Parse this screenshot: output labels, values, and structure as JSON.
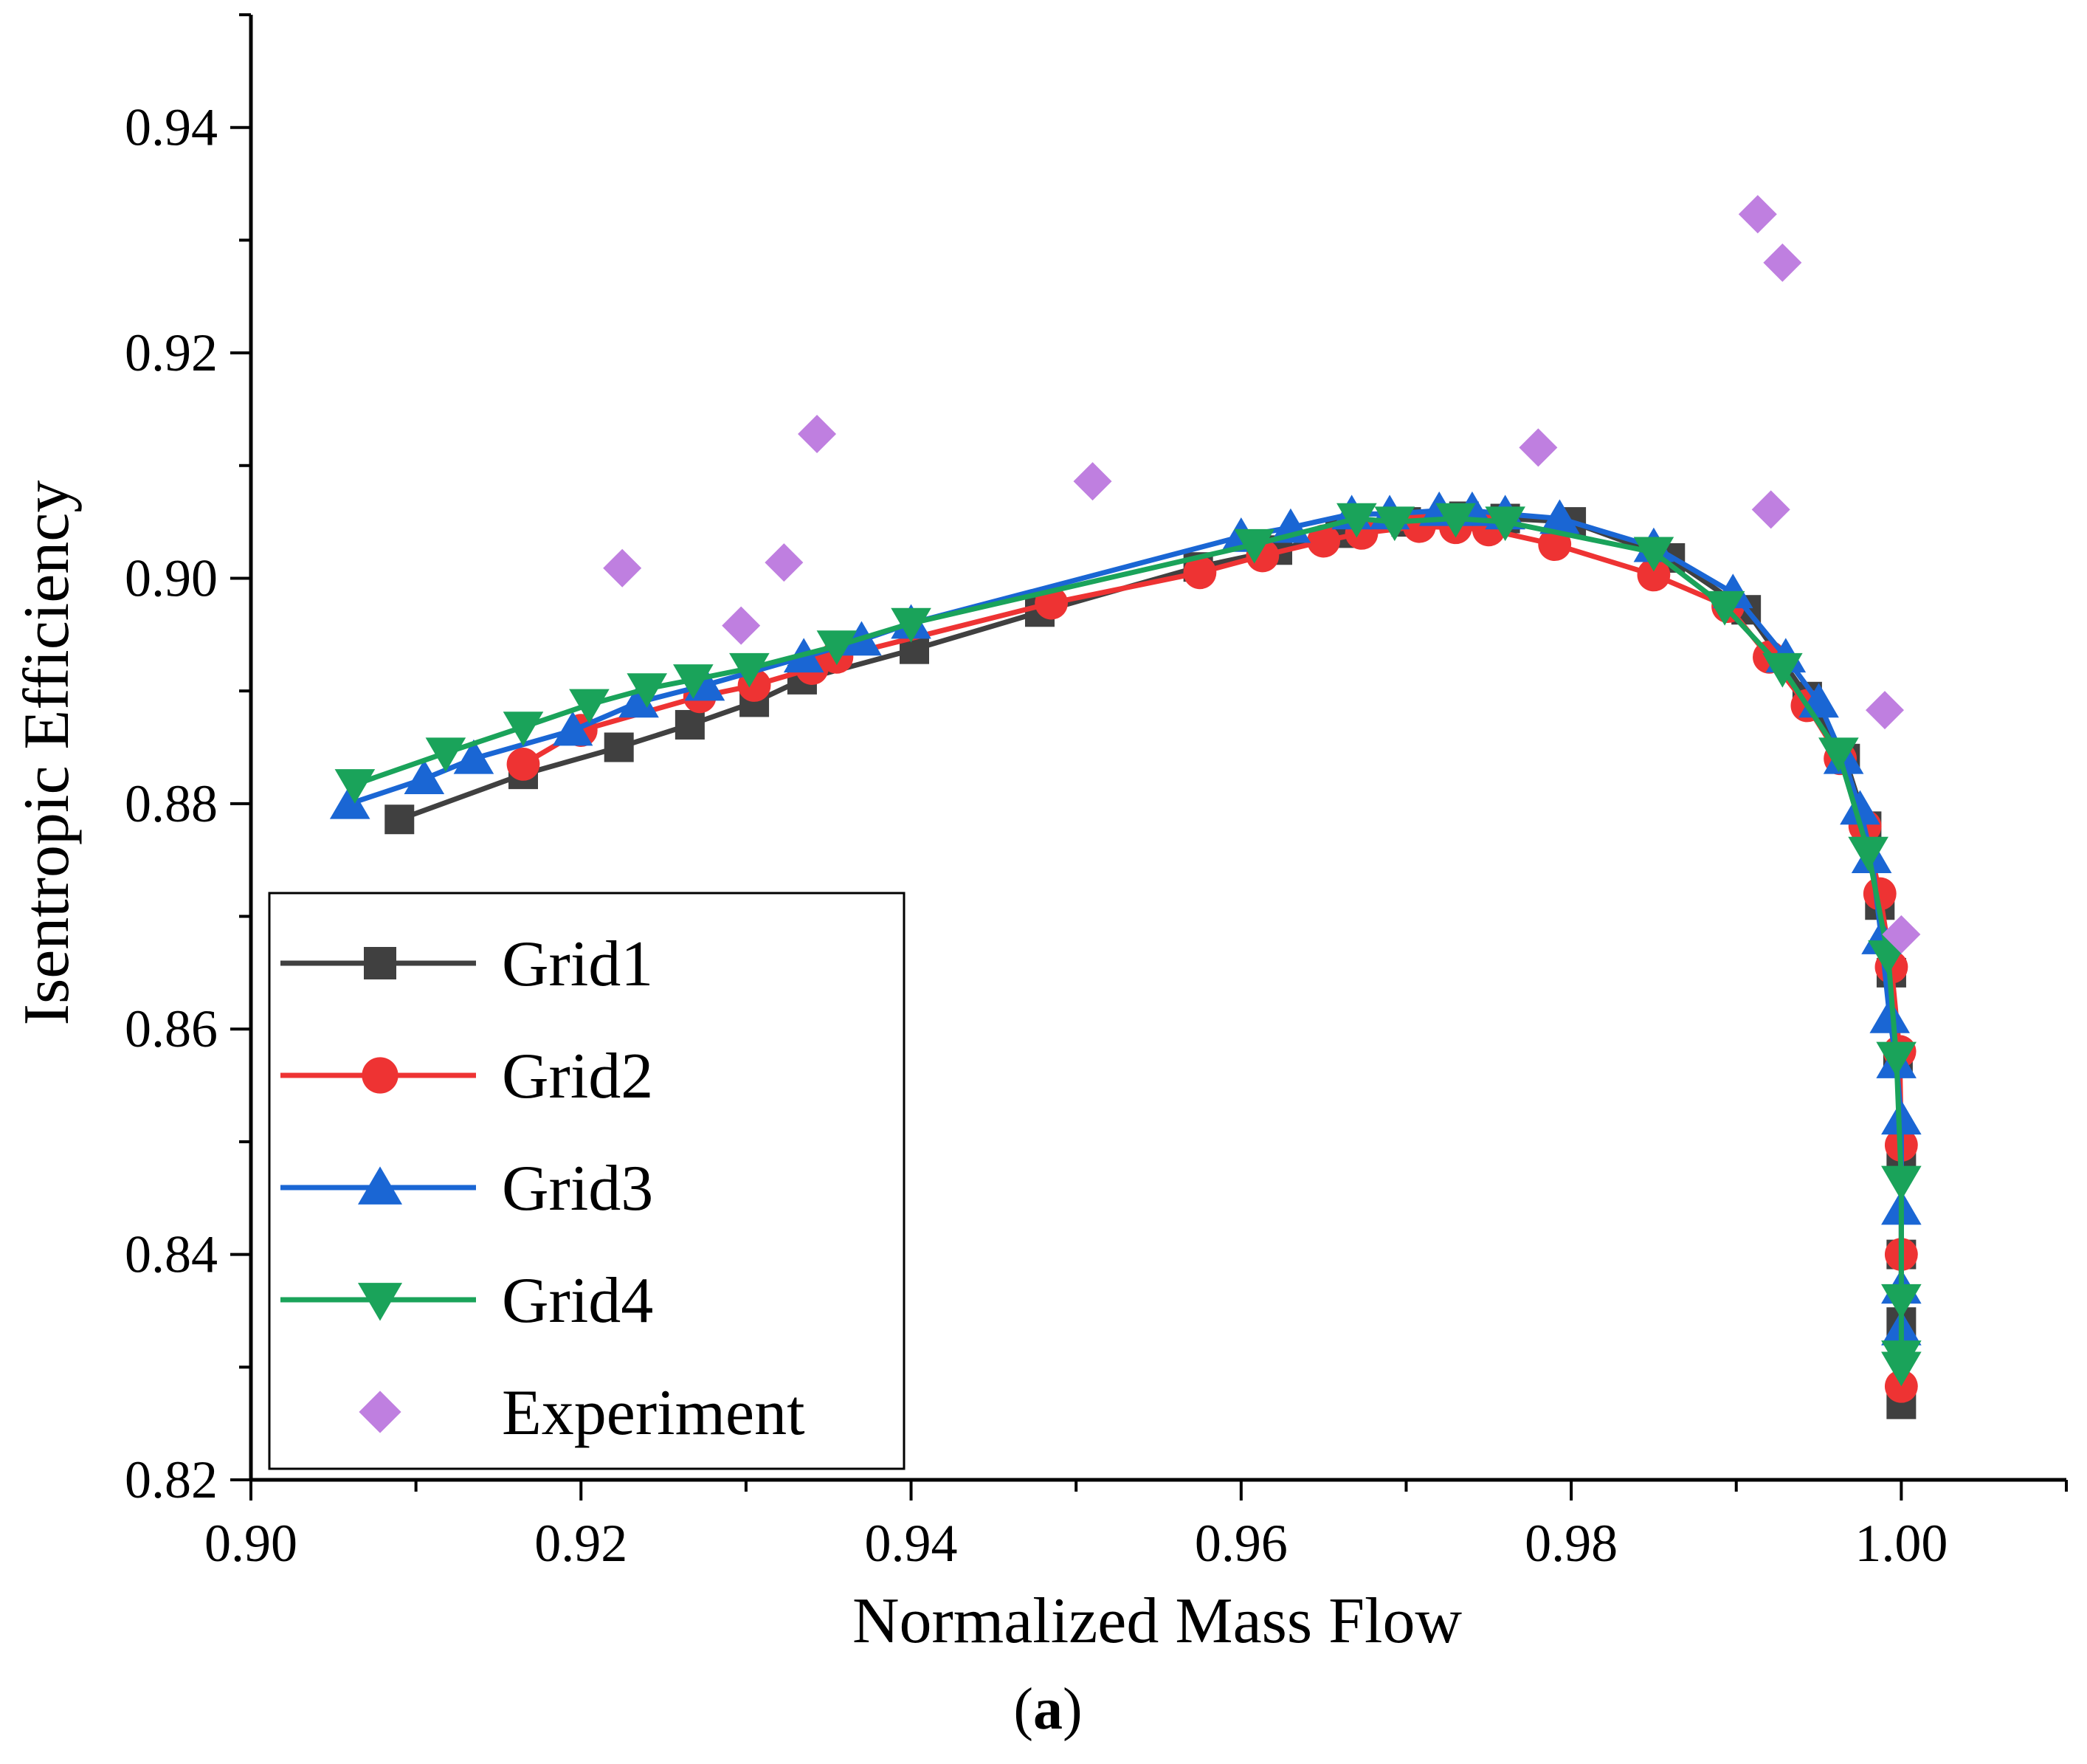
{
  "chart_data": {
    "type": "line",
    "title": "",
    "xlabel": "Normalized Mass Flow",
    "ylabel": "Isentropic Efficiency",
    "xlim": [
      0.9,
      1.01
    ],
    "ylim": [
      0.82,
      0.95
    ],
    "x_ticks": [
      "0.90",
      "0.92",
      "0.94",
      "0.96",
      "0.98",
      "1.00"
    ],
    "y_ticks": [
      "0.82",
      "0.84",
      "0.86",
      "0.88",
      "0.90",
      "0.92",
      "0.94"
    ],
    "legend_position": "bottom-left",
    "caption": {
      "open": "(",
      "label": "a",
      "close": ")"
    },
    "series": [
      {
        "name": "Grid1",
        "color": "#404040",
        "marker": "square",
        "x": [
          0.909,
          0.9165,
          0.9223,
          0.9266,
          0.9305,
          0.9334,
          0.9402,
          0.9478,
          0.9574,
          0.9622,
          0.966,
          0.97,
          0.9735,
          0.976,
          0.98,
          0.986,
          0.9906,
          0.9943,
          0.9966,
          0.9979,
          0.9987,
          0.9994,
          0.9998,
          1.0,
          1.0,
          1.0,
          1.0
        ],
        "y": [
          0.8786,
          0.8826,
          0.885,
          0.887,
          0.889,
          0.891,
          0.8937,
          0.897,
          0.901,
          0.9025,
          0.904,
          0.905,
          0.9055,
          0.9053,
          0.905,
          0.9018,
          0.8972,
          0.8895,
          0.884,
          0.878,
          0.871,
          0.865,
          0.857,
          0.849,
          0.84,
          0.834,
          0.8267
        ]
      },
      {
        "name": "Grid2",
        "color": "#ee3333",
        "marker": "circle",
        "x": [
          0.9165,
          0.92,
          0.9272,
          0.9305,
          0.934,
          0.9355,
          0.9485,
          0.9575,
          0.9613,
          0.965,
          0.9673,
          0.9708,
          0.973,
          0.975,
          0.979,
          0.985,
          0.9895,
          0.992,
          0.9943,
          0.9963,
          0.9978,
          0.9987,
          0.9994,
          0.9999,
          1.0,
          1.0,
          1.0
        ],
        "y": [
          0.8835,
          0.8865,
          0.8895,
          0.8905,
          0.892,
          0.893,
          0.8978,
          0.9005,
          0.902,
          0.9033,
          0.904,
          0.9046,
          0.9045,
          0.9043,
          0.903,
          0.9003,
          0.8975,
          0.893,
          0.8887,
          0.884,
          0.878,
          0.872,
          0.8655,
          0.858,
          0.8497,
          0.84,
          0.8283
        ]
      },
      {
        "name": "Grid3",
        "color": "#1a66d4",
        "marker": "triangle-up",
        "x": [
          0.906,
          0.9105,
          0.9135,
          0.9195,
          0.9235,
          0.9275,
          0.9335,
          0.937,
          0.94,
          0.96,
          0.963,
          0.9667,
          0.969,
          0.972,
          0.974,
          0.976,
          0.9793,
          0.985,
          0.9898,
          0.993,
          0.995,
          0.9965,
          0.9975,
          0.9982,
          0.9988,
          0.9993,
          0.9997,
          1.0,
          1.0,
          1.0,
          1.0
        ],
        "y": [
          0.88,
          0.8822,
          0.884,
          0.8865,
          0.889,
          0.8905,
          0.893,
          0.8945,
          0.896,
          0.9037,
          0.9045,
          0.9057,
          0.9057,
          0.906,
          0.906,
          0.9057,
          0.9053,
          0.9028,
          0.8987,
          0.893,
          0.889,
          0.884,
          0.8795,
          0.8752,
          0.868,
          0.861,
          0.857,
          0.852,
          0.844,
          0.837,
          0.8333
        ]
      },
      {
        "name": "Grid4",
        "color": "#1aa35a",
        "marker": "triangle-down",
        "x": [
          0.9063,
          0.9118,
          0.9165,
          0.9205,
          0.924,
          0.9268,
          0.9302,
          0.9355,
          0.94,
          0.9608,
          0.967,
          0.9693,
          0.973,
          0.976,
          0.985,
          0.9893,
          0.9928,
          0.9962,
          0.998,
          0.9992,
          0.9997,
          1.0,
          1.0,
          1.0,
          1.0
        ],
        "y": [
          0.8817,
          0.8845,
          0.8868,
          0.8888,
          0.8902,
          0.891,
          0.892,
          0.894,
          0.896,
          0.903,
          0.9053,
          0.905,
          0.9053,
          0.905,
          0.9023,
          0.8975,
          0.892,
          0.8845,
          0.8757,
          0.8665,
          0.8575,
          0.8465,
          0.836,
          0.831,
          0.83
        ]
      },
      {
        "name": "Experiment",
        "color": "#bf7fe0",
        "marker": "diamond",
        "line": false,
        "x": [
          0.9225,
          0.9297,
          0.9323,
          0.9343,
          0.951,
          0.978,
          0.9913,
          0.9928,
          0.9921,
          0.999,
          1.0
        ],
        "y": [
          0.9009,
          0.8958,
          0.9014,
          0.9128,
          0.9086,
          0.9116,
          0.9323,
          0.928,
          0.9061,
          0.8883,
          0.8684
        ]
      }
    ]
  }
}
